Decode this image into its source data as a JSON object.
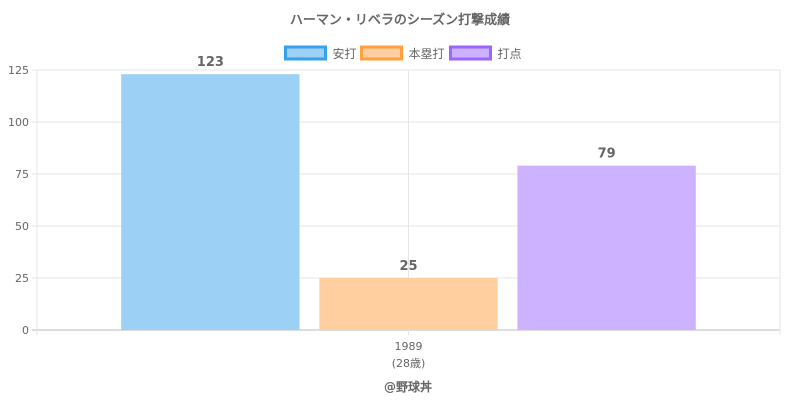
{
  "chart_data": {
    "type": "bar",
    "title": "ハーマン・リベラのシーズン打撃成績",
    "categories": [
      "1989"
    ],
    "category_sublabels": [
      "(28歳)"
    ],
    "series": [
      {
        "name": "安打",
        "values": [
          123
        ],
        "data_labels": [
          "123"
        ],
        "color": "#9cd0f5",
        "border_color": "#36a2eb"
      },
      {
        "name": "本塁打",
        "values": [
          25
        ],
        "data_labels": [
          "25"
        ],
        "color": "#ffcf9f",
        "border_color": "#ff9f40"
      },
      {
        "name": "打点",
        "values": [
          79
        ],
        "data_labels": [
          "79"
        ],
        "color": "#ccb2ff",
        "border_color": "#9966ff"
      }
    ],
    "ylim": [
      0,
      125
    ],
    "yticks": [
      "0",
      "25",
      "50",
      "75",
      "100",
      "125"
    ],
    "grid": true,
    "legend_position": "top"
  },
  "footer": "@野球丼"
}
